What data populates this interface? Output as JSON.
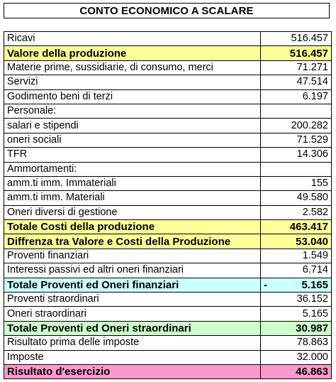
{
  "title": "CONTO ECONOMICO A SCALARE",
  "rows": [
    {
      "label": "Ricavi",
      "value": "516.457"
    },
    {
      "label": "Valore della produzione",
      "value": "516.457"
    },
    {
      "label": "Materie prime, sussidiarie, di consumo, merci",
      "value": "71.271"
    },
    {
      "label": "Servizi",
      "value": "47.514"
    },
    {
      "label": "Godimento beni di terzi",
      "value": "6.197"
    },
    {
      "label": "Personale:",
      "value": ""
    },
    {
      "label": "salari e stipendi",
      "value": "200.282"
    },
    {
      "label": "oneri sociali",
      "value": "71.529"
    },
    {
      "label": "TFR",
      "value": "14.306"
    },
    {
      "label": "Ammortamenti:",
      "value": ""
    },
    {
      "label": "amm.ti imm. Immateriali",
      "value": "155"
    },
    {
      "label": "amm.ti imm. Materiali",
      "value": "49.580"
    },
    {
      "label": "Oneri diversi di gestione",
      "value": "2.582"
    },
    {
      "label": "Totale Costi della produzione",
      "value": "463.417"
    },
    {
      "label": "Diffrenza tra Valore e Costi della Produzione",
      "value": "53.040"
    },
    {
      "label": "Proventi finanziari",
      "value": "1.549"
    },
    {
      "label": "Interessi passivi  ed altri oneri finanziari",
      "value": "6.714"
    },
    {
      "label": "Totale Proventi ed Oneri finanziari",
      "sign": "-",
      "value": "5.165"
    },
    {
      "label": "Proventi straordinari",
      "value": "36.152"
    },
    {
      "label": "Oneri straordinari",
      "value": "5.165"
    },
    {
      "label": "Totale Proventi ed Oneri straordinari",
      "value": "30.987"
    },
    {
      "label": "Risultato prima delle imposte",
      "value": "78.863"
    },
    {
      "label": "Imposte",
      "value": "32.000"
    },
    {
      "label": "Risultato d'esercizio",
      "value": "46.863"
    }
  ],
  "highlight_colors": {
    "yellow": "#ffff99",
    "cyan": "#ccffff",
    "green": "#ccffcc",
    "pink": "#ff99cc"
  }
}
